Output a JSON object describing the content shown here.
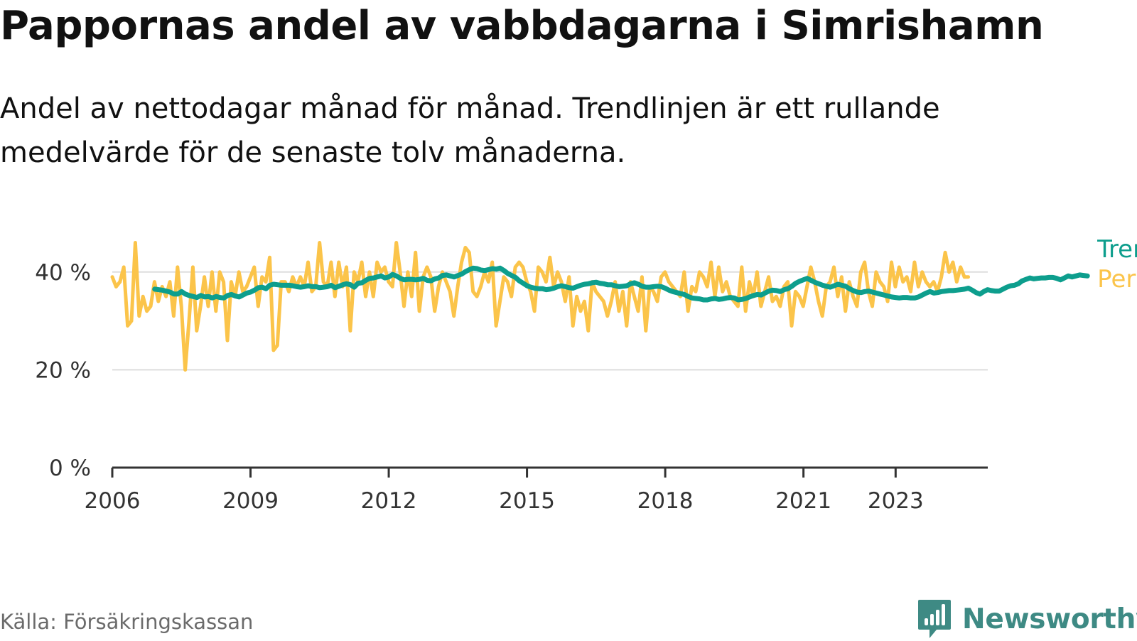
{
  "title": "Pappornas andel av vabbdagarna i Simrishamn",
  "subtitle": "Andel av nettodagar månad för månad. Trendlinjen är ett rullande medelvärde för de senaste tolv månaderna.",
  "source": "Källa: Försäkringskassan",
  "brand": {
    "name": "Newsworthy",
    "icon": "newsworthy-logo-icon",
    "color": "#3e8a84"
  },
  "colors": {
    "trend": "#0d9e8d",
    "monthly": "#fbc44a",
    "grid": "#dddddd",
    "axis": "#333333"
  },
  "chart_data": {
    "type": "line",
    "title": "Pappornas andel av vabbdagarna i Simrishamn",
    "ylim": [
      0,
      0.5
    ],
    "yticks": [
      0,
      0.2,
      0.4
    ],
    "ytick_labels": [
      "0 %",
      "20 %",
      "40 %"
    ],
    "xlim": [
      2006,
      2025
    ],
    "xticks": [
      2006,
      2009,
      2012,
      2015,
      2018,
      2021,
      2023
    ],
    "xtick_labels": [
      "2006",
      "2009",
      "2012",
      "2015",
      "2018",
      "2021",
      "2023"
    ],
    "grid": true,
    "legend": "right, at line ends",
    "series": [
      {
        "name": "Per månad",
        "color": "#fbc44a",
        "x_start": 2006.0,
        "x_step": 0.0833,
        "values": [
          0.39,
          0.37,
          0.38,
          0.41,
          0.29,
          0.3,
          0.46,
          0.31,
          0.35,
          0.32,
          0.33,
          0.38,
          0.34,
          0.37,
          0.35,
          0.38,
          0.31,
          0.41,
          0.33,
          0.2,
          0.3,
          0.41,
          0.28,
          0.33,
          0.39,
          0.33,
          0.4,
          0.32,
          0.4,
          0.38,
          0.26,
          0.38,
          0.35,
          0.4,
          0.36,
          0.37,
          0.39,
          0.41,
          0.33,
          0.39,
          0.38,
          0.43,
          0.24,
          0.25,
          0.38,
          0.38,
          0.36,
          0.39,
          0.37,
          0.39,
          0.37,
          0.42,
          0.36,
          0.37,
          0.46,
          0.38,
          0.37,
          0.42,
          0.35,
          0.42,
          0.37,
          0.41,
          0.28,
          0.4,
          0.38,
          0.42,
          0.35,
          0.4,
          0.35,
          0.42,
          0.4,
          0.41,
          0.38,
          0.37,
          0.46,
          0.4,
          0.33,
          0.4,
          0.35,
          0.44,
          0.32,
          0.39,
          0.41,
          0.39,
          0.32,
          0.37,
          0.4,
          0.38,
          0.36,
          0.31,
          0.37,
          0.42,
          0.45,
          0.44,
          0.36,
          0.35,
          0.37,
          0.4,
          0.38,
          0.42,
          0.29,
          0.34,
          0.39,
          0.38,
          0.35,
          0.41,
          0.42,
          0.41,
          0.38,
          0.36,
          0.32,
          0.41,
          0.4,
          0.38,
          0.43,
          0.37,
          0.4,
          0.38,
          0.34,
          0.39,
          0.29,
          0.35,
          0.32,
          0.34,
          0.28,
          0.38,
          0.36,
          0.35,
          0.34,
          0.31,
          0.34,
          0.38,
          0.32,
          0.36,
          0.29,
          0.38,
          0.35,
          0.32,
          0.39,
          0.28,
          0.37,
          0.36,
          0.34,
          0.39,
          0.4,
          0.38,
          0.37,
          0.36,
          0.35,
          0.4,
          0.32,
          0.37,
          0.36,
          0.4,
          0.39,
          0.37,
          0.42,
          0.35,
          0.41,
          0.36,
          0.38,
          0.35,
          0.34,
          0.33,
          0.41,
          0.32,
          0.38,
          0.35,
          0.4,
          0.33,
          0.36,
          0.39,
          0.34,
          0.35,
          0.33,
          0.37,
          0.38,
          0.29,
          0.36,
          0.35,
          0.33,
          0.37,
          0.41,
          0.38,
          0.34,
          0.31,
          0.37,
          0.38,
          0.41,
          0.35,
          0.39,
          0.32,
          0.38,
          0.35,
          0.33,
          0.4,
          0.42,
          0.36,
          0.33,
          0.4,
          0.38,
          0.37,
          0.34,
          0.42,
          0.37,
          0.41,
          0.38,
          0.39,
          0.36,
          0.42,
          0.37,
          0.4,
          0.38,
          0.37,
          0.38,
          0.36,
          0.39,
          0.44,
          0.4,
          0.42,
          0.38,
          0.41,
          0.39,
          0.39
        ]
      },
      {
        "name": "Trend",
        "color": "#0d9e8d",
        "x_start": 2006.92,
        "x_step": 0.0833,
        "values": [
          0.365,
          0.364,
          0.363,
          0.361,
          0.359,
          0.355,
          0.355,
          0.36,
          0.355,
          0.352,
          0.35,
          0.348,
          0.352,
          0.349,
          0.35,
          0.347,
          0.35,
          0.348,
          0.347,
          0.352,
          0.354,
          0.351,
          0.349,
          0.353,
          0.357,
          0.359,
          0.363,
          0.368,
          0.369,
          0.366,
          0.373,
          0.375,
          0.374,
          0.373,
          0.373,
          0.373,
          0.372,
          0.37,
          0.369,
          0.37,
          0.372,
          0.37,
          0.37,
          0.368,
          0.369,
          0.37,
          0.373,
          0.368,
          0.371,
          0.374,
          0.376,
          0.374,
          0.369,
          0.377,
          0.378,
          0.383,
          0.387,
          0.388,
          0.39,
          0.392,
          0.388,
          0.39,
          0.395,
          0.392,
          0.387,
          0.384,
          0.385,
          0.385,
          0.384,
          0.385,
          0.387,
          0.383,
          0.382,
          0.386,
          0.388,
          0.393,
          0.394,
          0.392,
          0.39,
          0.393,
          0.396,
          0.401,
          0.405,
          0.408,
          0.407,
          0.404,
          0.403,
          0.405,
          0.407,
          0.406,
          0.408,
          0.403,
          0.397,
          0.393,
          0.389,
          0.382,
          0.377,
          0.372,
          0.369,
          0.367,
          0.366,
          0.366,
          0.364,
          0.365,
          0.367,
          0.37,
          0.372,
          0.37,
          0.368,
          0.367,
          0.37,
          0.373,
          0.375,
          0.376,
          0.378,
          0.379,
          0.377,
          0.376,
          0.374,
          0.374,
          0.372,
          0.37,
          0.371,
          0.372,
          0.376,
          0.378,
          0.375,
          0.371,
          0.369,
          0.369,
          0.37,
          0.371,
          0.37,
          0.367,
          0.363,
          0.36,
          0.358,
          0.356,
          0.354,
          0.35,
          0.347,
          0.346,
          0.345,
          0.343,
          0.343,
          0.345,
          0.346,
          0.344,
          0.345,
          0.347,
          0.348,
          0.347,
          0.343,
          0.344,
          0.346,
          0.349,
          0.352,
          0.354,
          0.353,
          0.357,
          0.361,
          0.363,
          0.362,
          0.36,
          0.364,
          0.366,
          0.371,
          0.377,
          0.381,
          0.384,
          0.387,
          0.383,
          0.379,
          0.376,
          0.373,
          0.371,
          0.369,
          0.372,
          0.375,
          0.373,
          0.371,
          0.366,
          0.362,
          0.359,
          0.358,
          0.36,
          0.361,
          0.359,
          0.357,
          0.355,
          0.353,
          0.351,
          0.349,
          0.348,
          0.347,
          0.348,
          0.348,
          0.347,
          0.347,
          0.349,
          0.353,
          0.357,
          0.36,
          0.357,
          0.358,
          0.36,
          0.361,
          0.362,
          0.362,
          0.363,
          0.364,
          0.365,
          0.367,
          0.363,
          0.358,
          0.355,
          0.36,
          0.364,
          0.362,
          0.361,
          0.361,
          0.365,
          0.369,
          0.372,
          0.373,
          0.376,
          0.382,
          0.385,
          0.388,
          0.386,
          0.387,
          0.388,
          0.388,
          0.389,
          0.389,
          0.387,
          0.384,
          0.388,
          0.392,
          0.39,
          0.392,
          0.394,
          0.393,
          0.392
        ]
      }
    ]
  }
}
